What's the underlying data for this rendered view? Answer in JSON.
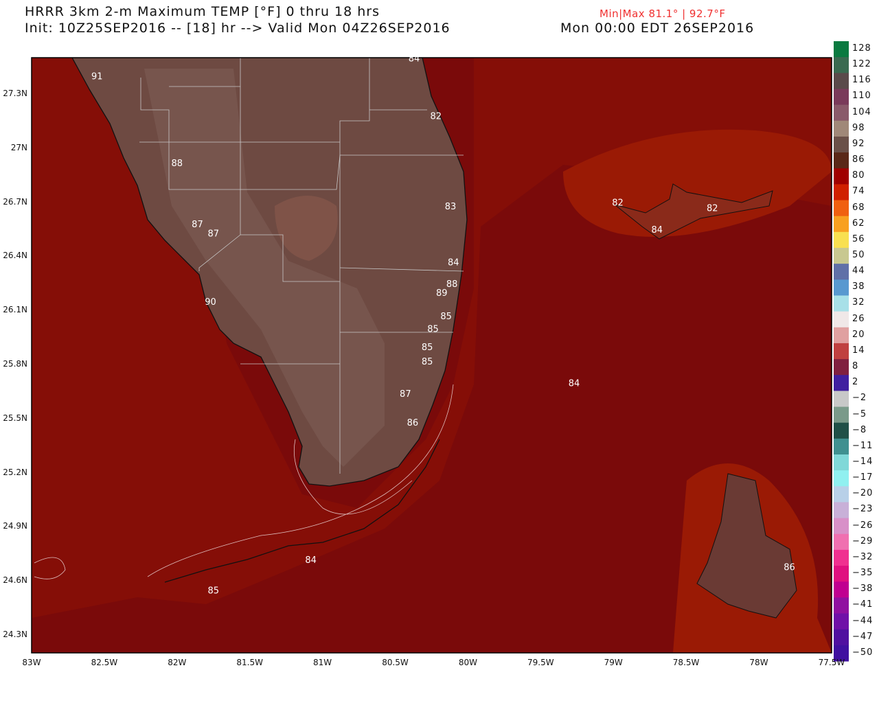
{
  "header": {
    "title": "HRRR 3km 2-m Maximum TEMP [°F] 0 thru 18 hrs",
    "init_line": "Init: 10Z25SEP2016 -- [18] hr --> Valid Mon 04Z26SEP2016",
    "valid_local": "Mon 00:00 EDT 26SEP2016",
    "minmax": "Min|Max 81.1° | 92.7°F"
  },
  "map": {
    "lon_range": [
      -83,
      -77.5
    ],
    "lat_range": [
      24.2,
      27.5
    ],
    "lat_ticks": [
      "27.3N",
      "27N",
      "26.7N",
      "26.4N",
      "26.1N",
      "25.8N",
      "25.5N",
      "25.2N",
      "24.9N",
      "24.6N",
      "24.3N"
    ],
    "lat_tick_values": [
      27.3,
      27.0,
      26.7,
      26.4,
      26.1,
      25.8,
      25.5,
      25.2,
      24.9,
      24.6,
      24.3
    ],
    "lon_ticks": [
      "83W",
      "82.5W",
      "82W",
      "81.5W",
      "81W",
      "80.5W",
      "80W",
      "79.5W",
      "79W",
      "78.5W",
      "78W",
      "77.5W"
    ],
    "lon_tick_values": [
      -83,
      -82.5,
      -82,
      -81.5,
      -81,
      -80.5,
      -80,
      -79.5,
      -79,
      -78.5,
      -78,
      -77.5
    ],
    "colors": {
      "ocean": "#7a0a0a",
      "shelf": "#8e1206",
      "land": "#6e4a42",
      "bank": "#9a1a05"
    },
    "point_values": [
      {
        "label": "84",
        "lon": -80.37,
        "lat": 27.5
      },
      {
        "label": "91",
        "lon": -82.55,
        "lat": 27.4
      },
      {
        "label": "82",
        "lon": -80.22,
        "lat": 27.18
      },
      {
        "label": "88",
        "lon": -82.0,
        "lat": 26.92
      },
      {
        "label": "83",
        "lon": -80.12,
        "lat": 26.68
      },
      {
        "label": "82",
        "lon": -78.97,
        "lat": 26.7
      },
      {
        "label": "82",
        "lon": -78.32,
        "lat": 26.67
      },
      {
        "label": "84",
        "lon": -78.7,
        "lat": 26.55
      },
      {
        "label": "87",
        "lon": -81.86,
        "lat": 26.58
      },
      {
        "label": "87",
        "lon": -81.75,
        "lat": 26.53
      },
      {
        "label": "84",
        "lon": -80.1,
        "lat": 26.37
      },
      {
        "label": "88",
        "lon": -80.11,
        "lat": 26.25
      },
      {
        "label": "89",
        "lon": -80.18,
        "lat": 26.2
      },
      {
        "label": "90",
        "lon": -81.77,
        "lat": 26.15
      },
      {
        "label": "85",
        "lon": -80.15,
        "lat": 26.07
      },
      {
        "label": "85",
        "lon": -80.24,
        "lat": 26.0
      },
      {
        "label": "85",
        "lon": -80.28,
        "lat": 25.9
      },
      {
        "label": "85",
        "lon": -80.28,
        "lat": 25.82
      },
      {
        "label": "84",
        "lon": -79.27,
        "lat": 25.7
      },
      {
        "label": "87",
        "lon": -80.43,
        "lat": 25.64
      },
      {
        "label": "86",
        "lon": -80.38,
        "lat": 25.48
      },
      {
        "label": "84",
        "lon": -81.08,
        "lat": 24.72
      },
      {
        "label": "86",
        "lon": -77.79,
        "lat": 24.68
      },
      {
        "label": "85",
        "lon": -81.75,
        "lat": 24.55
      }
    ]
  },
  "colorbar": {
    "labels": [
      "128",
      "122",
      "116",
      "110",
      "104",
      "98",
      "92",
      "86",
      "80",
      "74",
      "68",
      "62",
      "56",
      "50",
      "44",
      "38",
      "32",
      "26",
      "20",
      "14",
      "8",
      "2",
      "−2",
      "−5",
      "−8",
      "−11",
      "−14",
      "−17",
      "−20",
      "−23",
      "−26",
      "−29",
      "−32",
      "−35",
      "−38",
      "−41",
      "−44",
      "−47",
      "−50"
    ],
    "colors": [
      "#0a7a40",
      "#3a6a50",
      "#5a4a4a",
      "#7a3a5a",
      "#8a5a6a",
      "#a08878",
      "#6a5048",
      "#5a2818",
      "#a00000",
      "#d02000",
      "#f06010",
      "#f8a020",
      "#f8e050",
      "#c8c890",
      "#6070a8",
      "#5898d0",
      "#a8e0e8",
      "#f0e8e8",
      "#e0a0a0",
      "#c04040",
      "#802040",
      "#4020a0",
      "#c8c8c8",
      "#7a9a8a",
      "#205048",
      "#409090",
      "#80d8d8",
      "#90f0f0",
      "#b8d0e8",
      "#c8b0d8",
      "#d890c8",
      "#f070b0",
      "#f03090",
      "#e01080",
      "#c00090",
      "#9010a0",
      "#7010a8",
      "#5010a0",
      "#4010a0"
    ]
  }
}
